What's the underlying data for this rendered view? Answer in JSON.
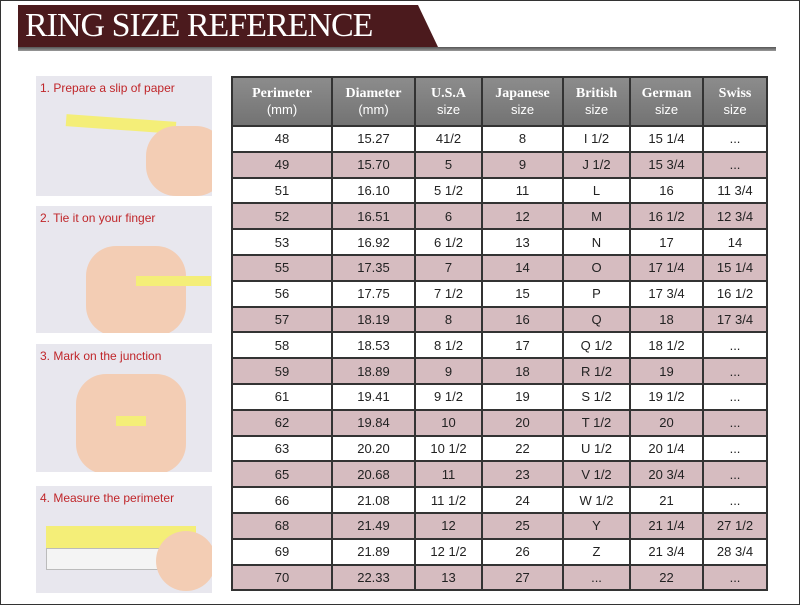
{
  "title": "RING SIZE REFERENCE",
  "steps": [
    "1. Prepare a slip of paper",
    "2. Tie it on your finger",
    "3. Mark on the junction",
    "4. Measure the perimeter"
  ],
  "columns": [
    {
      "name": "Perimeter",
      "unit": "(mm)"
    },
    {
      "name": "Diameter",
      "unit": "(mm)"
    },
    {
      "name": "U.S.A",
      "unit": "size"
    },
    {
      "name": "Japanese",
      "unit": "size"
    },
    {
      "name": "British",
      "unit": "size"
    },
    {
      "name": "German",
      "unit": "size"
    },
    {
      "name": "Swiss",
      "unit": "size"
    }
  ],
  "rows": [
    [
      "48",
      "15.27",
      "41/2",
      "8",
      "I 1/2",
      "15 1/4",
      "..."
    ],
    [
      "49",
      "15.70",
      "5",
      "9",
      "J 1/2",
      "15 3/4",
      "..."
    ],
    [
      "51",
      "16.10",
      "5 1/2",
      "11",
      "L",
      "16",
      "11 3/4"
    ],
    [
      "52",
      "16.51",
      "6",
      "12",
      "M",
      "16 1/2",
      "12 3/4"
    ],
    [
      "53",
      "16.92",
      "6 1/2",
      "13",
      "N",
      "17",
      "14"
    ],
    [
      "55",
      "17.35",
      "7",
      "14",
      "O",
      "17 1/4",
      "15 1/4"
    ],
    [
      "56",
      "17.75",
      "7 1/2",
      "15",
      "P",
      "17 3/4",
      "16 1/2"
    ],
    [
      "57",
      "18.19",
      "8",
      "16",
      "Q",
      "18",
      "17 3/4"
    ],
    [
      "58",
      "18.53",
      "8 1/2",
      "17",
      "Q  1/2",
      "18 1/2",
      "..."
    ],
    [
      "59",
      "18.89",
      "9",
      "18",
      "R 1/2",
      "19",
      "..."
    ],
    [
      "61",
      "19.41",
      "9 1/2",
      "19",
      "S 1/2",
      "19 1/2",
      "..."
    ],
    [
      "62",
      "19.84",
      "10",
      "20",
      "T 1/2",
      "20",
      "..."
    ],
    [
      "63",
      "20.20",
      "10 1/2",
      "22",
      "U 1/2",
      "20 1/4",
      "..."
    ],
    [
      "65",
      "20.68",
      "11",
      "23",
      "V 1/2",
      "20 3/4",
      "..."
    ],
    [
      "66",
      "21.08",
      "11 1/2",
      "24",
      "W 1/2",
      "21",
      "..."
    ],
    [
      "68",
      "21.49",
      "12",
      "25",
      "Y",
      "21 1/4",
      "27 1/2"
    ],
    [
      "69",
      "21.89",
      "12 1/2",
      "26",
      "Z",
      "21 3/4",
      "28 3/4"
    ],
    [
      "70",
      "22.33",
      "13",
      "27",
      "...",
      "22",
      "..."
    ]
  ],
  "colors": {
    "banner": "#4b1a1d",
    "header": "#808080",
    "stripe": "#d6bcc0",
    "step_label": "#c0262a"
  }
}
